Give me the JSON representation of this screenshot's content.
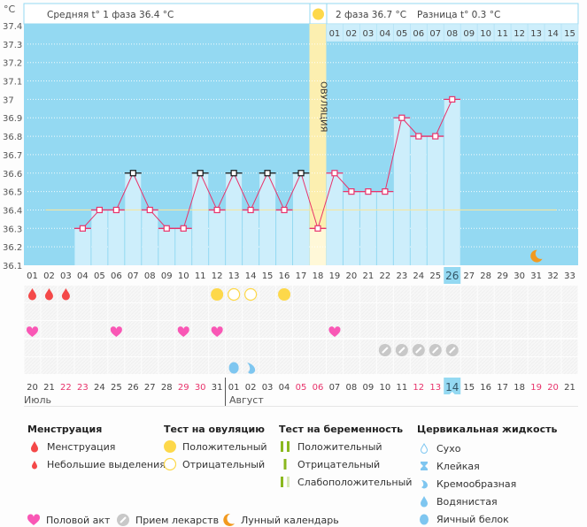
{
  "header": {
    "unit_label": "°C",
    "phase1_text": "Средняя t° 1 фаза 36.4 °C",
    "phase2_text": "2 фаза 36.7 °C",
    "difference_text": "Разница t° 0.3 °C",
    "ovulation_label": "ОВУЛЯЦИЯ"
  },
  "colors": {
    "plot_bg": "#94d9f2",
    "bar_fill": "#cdeefb",
    "line": "#e8336b",
    "ovulation_band": "#fcefb0",
    "coverline": "#f5e6a0",
    "today_highlight": "#94d9f2",
    "weekend_text": "#e8336b",
    "menstruation": "#f44848",
    "ovulation_test": "#fdd84a",
    "sex": "#f957b5",
    "pills": "#c8c8c8",
    "moon": "#f29a1f",
    "cervical": "#7ec6f0",
    "pregnancy": "#8ab81e"
  },
  "chart_data": {
    "type": "bar",
    "title": "",
    "xlabel": "",
    "ylabel": "°C",
    "ylim": [
      36.1,
      37.4
    ],
    "y_ticks": [
      "36.1",
      "36.2",
      "36.3",
      "36.4",
      "36.5",
      "36.6",
      "36.7",
      "36.8",
      "36.9",
      "37",
      "37.1",
      "37.2",
      "37.3",
      "37.4"
    ],
    "grid": true,
    "cycle_days": [
      "01",
      "02",
      "03",
      "04",
      "05",
      "06",
      "07",
      "08",
      "09",
      "10",
      "11",
      "12",
      "13",
      "14",
      "15",
      "16",
      "17",
      "18",
      "19",
      "20",
      "21",
      "22",
      "23",
      "24",
      "25",
      "26",
      "27",
      "28",
      "29",
      "30",
      "31",
      "32",
      "33"
    ],
    "temperatures": [
      null,
      null,
      null,
      36.3,
      36.4,
      36.4,
      36.6,
      36.4,
      36.3,
      36.3,
      36.6,
      36.4,
      36.6,
      36.4,
      36.6,
      36.4,
      36.6,
      36.3,
      36.6,
      36.5,
      36.5,
      36.5,
      36.9,
      36.8,
      36.8,
      37.0,
      null,
      null,
      null,
      null,
      null,
      null,
      null
    ],
    "black_markers_days": [
      7,
      11,
      13,
      15,
      17
    ],
    "coverline_value": 36.4,
    "ovulation_day": 18,
    "today_day": 26,
    "luteal_days_header": [
      "01",
      "02",
      "03",
      "04",
      "05",
      "06",
      "07",
      "08",
      "09",
      "10",
      "11",
      "12",
      "13",
      "14",
      "15"
    ],
    "moon_day": 31,
    "moon_value": 36.15
  },
  "calendar": {
    "dates": [
      "20",
      "21",
      "22",
      "23",
      "24",
      "25",
      "26",
      "27",
      "28",
      "29",
      "30",
      "31",
      "01",
      "02",
      "03",
      "04",
      "05",
      "06",
      "07",
      "08",
      "09",
      "10",
      "11",
      "12",
      "13",
      "14",
      "15",
      "16",
      "17",
      "18",
      "19",
      "20",
      "21"
    ],
    "weekend_days": [
      3,
      4,
      10,
      11,
      17,
      18,
      24,
      25,
      31,
      32
    ],
    "months": [
      {
        "label": "Июль",
        "start_day": 1
      },
      {
        "label": "Август",
        "start_day": 13
      }
    ]
  },
  "events": {
    "menstruation_days": [
      1,
      2,
      3
    ],
    "ovulation_test": [
      {
        "day": 12,
        "result": "positive"
      },
      {
        "day": 13,
        "result": "negative"
      },
      {
        "day": 14,
        "result": "negative"
      },
      {
        "day": 16,
        "result": "positive"
      }
    ],
    "sex_days": [
      1,
      6,
      10,
      12,
      19
    ],
    "pills_days": [
      22,
      23,
      24,
      25,
      26
    ],
    "cervical": [
      {
        "day": 13,
        "type": "egg-white"
      },
      {
        "day": 14,
        "type": "creamy"
      }
    ]
  },
  "legend": {
    "menstruation": {
      "title": "Менструация",
      "items": [
        "Менструация",
        "Небольшие выделения"
      ]
    },
    "ovulation_test": {
      "title": "Тест на овуляцию",
      "items": [
        "Положительный",
        "Отрицательный"
      ]
    },
    "pregnancy_test": {
      "title": "Тест на беременность",
      "items": [
        "Положительный",
        "Отрицательный",
        "Слабоположительный"
      ]
    },
    "cervical": {
      "title": "Цервикальная жидкость",
      "items": [
        "Сухо",
        "Клейкая",
        "Кремообразная",
        "Водянистая",
        "Яичный белок"
      ]
    },
    "bottom": [
      "Половой акт",
      "Прием лекарств",
      "Лунный календарь"
    ]
  }
}
